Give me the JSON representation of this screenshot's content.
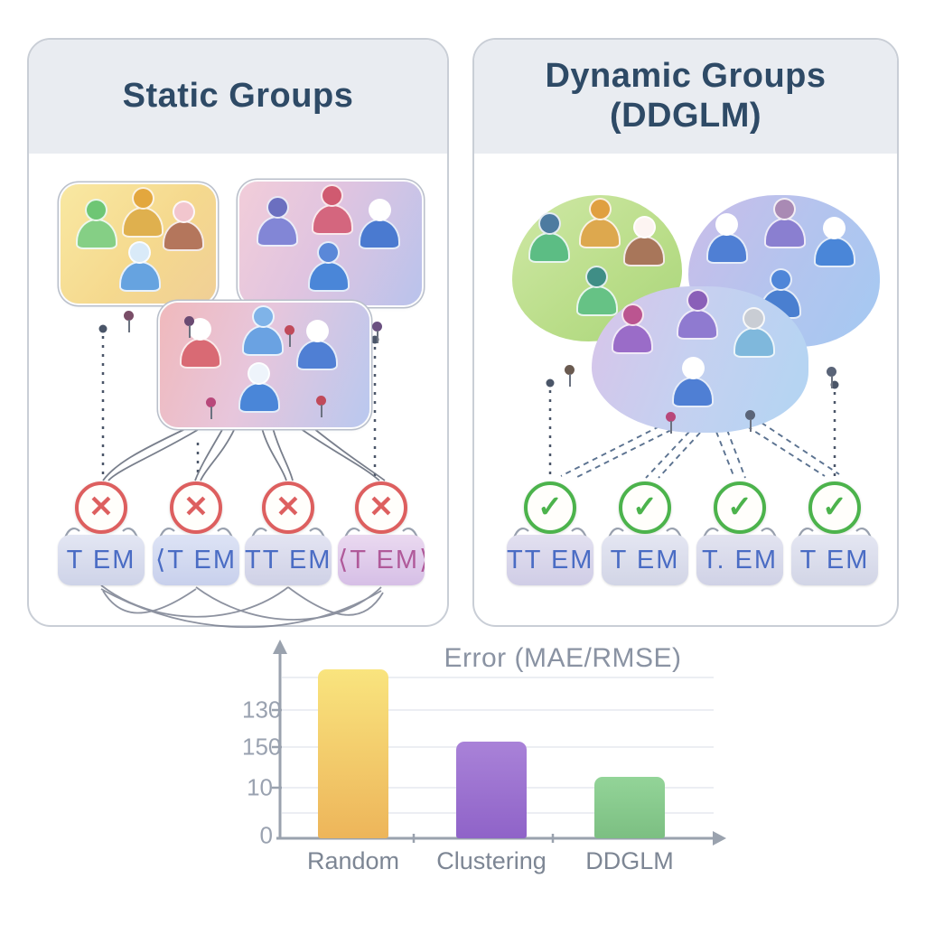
{
  "left_panel": {
    "title": "Static Groups",
    "groups": [
      {
        "id": "yellow-group",
        "members": [
          {
            "head": "#6ec674",
            "body": "#85cf85"
          },
          {
            "head": "#e3a73e",
            "body": "#dfb04e"
          },
          {
            "head": "#f2c6ce",
            "body": "#b4765c"
          },
          {
            "head": "#d9eaf8",
            "body": "#66a3e0"
          }
        ]
      },
      {
        "id": "pink-blue-group",
        "members": [
          {
            "head": "#6b6fc0",
            "body": "#8286d6"
          },
          {
            "head": "#d05a70",
            "body": "#d4667e"
          },
          {
            "head": "#ffffff",
            "body": "#4a7ad0"
          },
          {
            "head": "#5a88d8",
            "body": "#4a86d8"
          }
        ]
      },
      {
        "id": "overlap-group",
        "members": [
          {
            "head": "#ffffff",
            "body": "#d96a74"
          },
          {
            "head": "#7fb3e8",
            "body": "#6aa2e2"
          },
          {
            "head": "#ffffff",
            "body": "#4f7fd4"
          },
          {
            "head": "#eef4fb",
            "body": "#4a86d8"
          }
        ]
      }
    ],
    "mark_symbol": "✕",
    "items": [
      {
        "label": "T EM",
        "color": "#4a6cc4",
        "bg": [
          "#e3e6f3",
          "#ced3e8"
        ]
      },
      {
        "label": "⟨T EM",
        "color": "#4a6cc4",
        "bg": [
          "#dde3f5",
          "#c8d0ec"
        ]
      },
      {
        "label": "TT EM",
        "color": "#4a6cc4",
        "bg": [
          "#e3e4f2",
          "#cfd1e6"
        ]
      },
      {
        "label": "⟨T EM⟩",
        "color": "#b05a9a",
        "bg": [
          "#ead9f0",
          "#d6bfe6"
        ]
      }
    ]
  },
  "right_panel": {
    "title_line1": "Dynamic Groups",
    "title_line2": "(DDGLM)",
    "groups": [
      {
        "id": "green-blob",
        "members": [
          {
            "head": "#4d7ba0",
            "body": "#5cbd84"
          },
          {
            "head": "#e0a040",
            "body": "#dda84e"
          },
          {
            "head": "#fdf4f2",
            "body": "#a8765a"
          },
          {
            "head": "#3f8e86",
            "body": "#66c285"
          }
        ]
      },
      {
        "id": "purple-blue-blob",
        "members": [
          {
            "head": "#ffffff",
            "body": "#4f7fd4"
          },
          {
            "head": "#a98ab4",
            "body": "#8a7fd0"
          },
          {
            "head": "#ffffff",
            "body": "#4a86d8"
          },
          {
            "head": "#4f86d8",
            "body": "#4a7fd0"
          }
        ]
      },
      {
        "id": "middle-blob",
        "members": [
          {
            "head": "#bb5590",
            "body": "#9a6cc8"
          },
          {
            "head": "#8a5fb8",
            "body": "#8f7ad0"
          },
          {
            "head": "#c9cdd4",
            "body": "#7fb8dc"
          },
          {
            "head": "#ffffff",
            "body": "#4f7fd4"
          }
        ]
      }
    ],
    "mark_symbol": "✓",
    "items": [
      {
        "label": "TT EM",
        "color": "#4a6cc4",
        "bg": [
          "#e2e0f0",
          "#d0cde6"
        ]
      },
      {
        "label": "T EM",
        "color": "#4a6cc4",
        "bg": [
          "#e4e6f2",
          "#d2d5e6"
        ]
      },
      {
        "label": "T. EM",
        "color": "#4a6cc4",
        "bg": [
          "#e2e3f0",
          "#d0d2e6"
        ]
      },
      {
        "label": "T EM",
        "color": "#4a6cc4",
        "bg": [
          "#e4e6f2",
          "#d2d5e6"
        ]
      }
    ]
  },
  "chart_data": {
    "type": "bar",
    "title": "Error (MAE/RMSE)",
    "categories": [
      "Random",
      "Clustering",
      "DDGLM"
    ],
    "values": [
      44,
      25,
      16
    ],
    "ylim": [
      0,
      50
    ],
    "ytick_labels_as_shown": [
      "130",
      "150",
      "10",
      "0"
    ],
    "bar_colors": [
      [
        "#f9e47e",
        "#edb55a"
      ],
      [
        "#a982d8",
        "#8f63c8"
      ],
      [
        "#93d498",
        "#7cbf82"
      ]
    ],
    "grid": true,
    "legend": "none",
    "xlabel": "",
    "ylabel": ""
  },
  "colors": {
    "panel_header": "#e9ecf1",
    "panel_border": "#c9ced6",
    "title_text": "#2e4a66",
    "error_red": "#dd5f5f",
    "success_green": "#4cb34c",
    "axis_gray": "#9aa2ae",
    "label_gray": "#7d8694"
  }
}
